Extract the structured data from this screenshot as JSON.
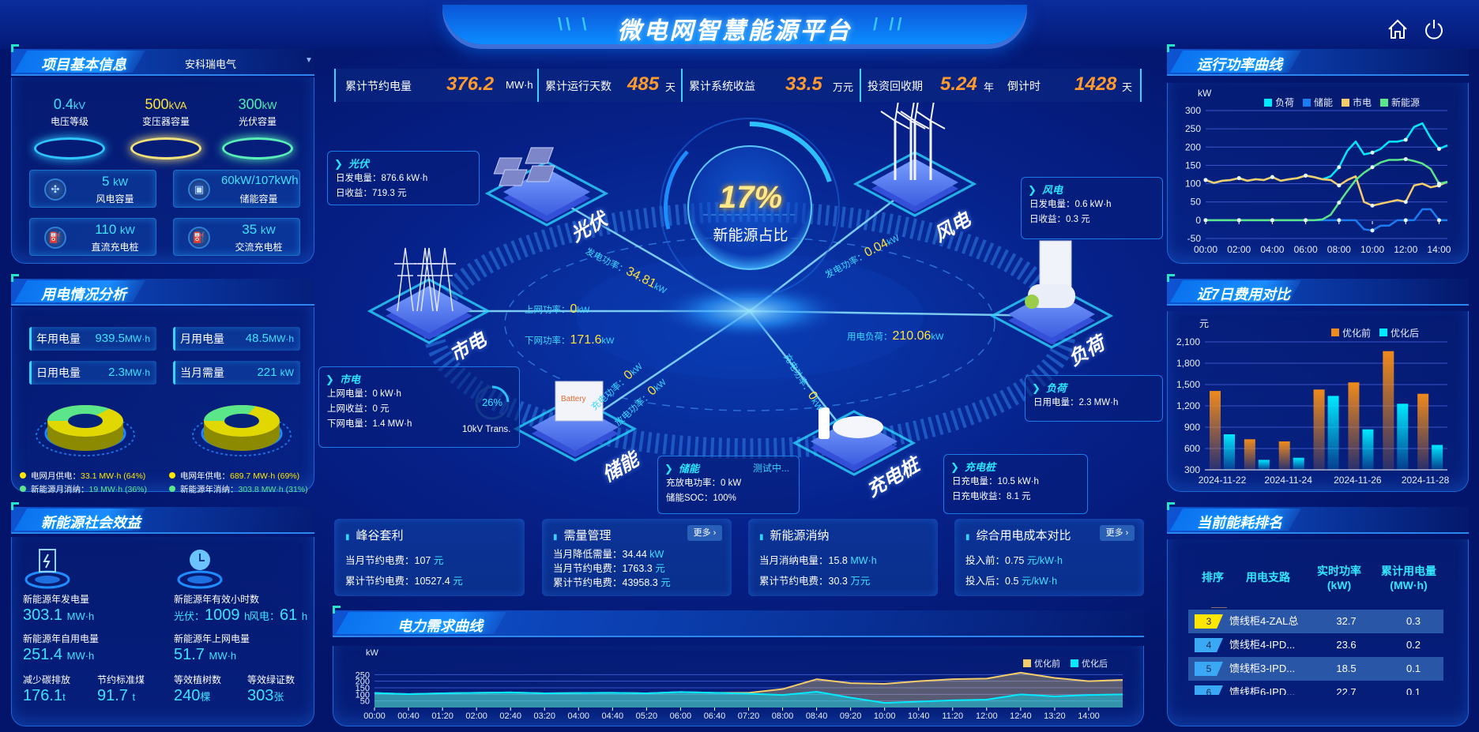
{
  "header": {
    "title": "微电网智慧能源平台",
    "icons": [
      "home-icon",
      "power-icon"
    ]
  },
  "project_info": {
    "title": "项目基本信息",
    "company_select": "安科瑞电气",
    "pedestals": [
      {
        "value": "0.4",
        "unit": "kV",
        "label": "电压等级",
        "color": "#3fe3ff"
      },
      {
        "value": "500",
        "unit": "kVA",
        "label": "变压器容量",
        "color": "#ffe23a"
      },
      {
        "value": "300",
        "unit": "kW",
        "label": "光伏容量",
        "color": "#4cf0b0"
      }
    ],
    "capacities": [
      {
        "value": "5",
        "unit": "kW",
        "label": "风电容量",
        "icon": "wind-turbine-icon"
      },
      {
        "value": "60kW/107kWh",
        "unit": "",
        "label": "储能容量",
        "icon": "battery-icon"
      },
      {
        "value": "110",
        "unit": "kW",
        "label": "直流充电桩",
        "icon": "charger-icon"
      },
      {
        "value": "35",
        "unit": "kW",
        "label": "交流充电桩",
        "icon": "charger-icon"
      }
    ]
  },
  "usage": {
    "title": "用电情况分析",
    "stats": [
      {
        "label": "年用电量",
        "value": "939.5",
        "unit": "MW·h"
      },
      {
        "label": "月用电量",
        "value": "48.5",
        "unit": "MW·h"
      },
      {
        "label": "日用电量",
        "value": "2.3",
        "unit": "MW·h"
      },
      {
        "label": "当月需量",
        "value": "221",
        "unit": "kW"
      }
    ],
    "donuts": [
      {
        "grid_pct": 64,
        "renew_pct": 36,
        "legend": [
          {
            "label": "电网月供电：",
            "value": "33.1 MW·h (64%)",
            "color": "#ffe600"
          },
          {
            "label": "新能源月消纳：",
            "value": "19 MW·h (36%)",
            "color": "#5ce68a"
          }
        ]
      },
      {
        "grid_pct": 69,
        "renew_pct": 31,
        "legend": [
          {
            "label": "电网年供电：",
            "value": "689.7 MW·h (69%)",
            "color": "#ffe600"
          },
          {
            "label": "新能源年消纳：",
            "value": "303.8 MW·h (31%)",
            "color": "#5ce68a"
          }
        ]
      }
    ]
  },
  "social": {
    "title": "新能源社会效益",
    "annual_gen": {
      "label": "新能源年发电量",
      "value": "303.1",
      "unit": "MW·h"
    },
    "hours": {
      "label": "新能源年有效小时数",
      "pv_label": "光伏：",
      "pv": "1009",
      "wind_label": "风电：",
      "wind": "61",
      "unit": "h"
    },
    "self_use": {
      "label": "新能源年自用电量",
      "value": "251.4",
      "unit": "MW·h"
    },
    "grid_feed": {
      "label": "新能源年上网电量",
      "value": "51.7",
      "unit": "MW·h"
    },
    "carbon": {
      "label": "减少碳排放",
      "value": "176.1",
      "unit": "t"
    },
    "coal": {
      "label": "节约标准煤",
      "value": "91.7",
      "unit": "t"
    },
    "trees": {
      "label": "等效植树数",
      "value": "240",
      "unit": "棵"
    },
    "certs": {
      "label": "等效绿证数",
      "value": "303",
      "unit": "张"
    }
  },
  "kpis": [
    {
      "label": "累计节约电量",
      "value": "376.2",
      "unit": "MW·h"
    },
    {
      "label": "累计运行天数",
      "value": "485",
      "unit": "天"
    },
    {
      "label": "累计系统收益",
      "value": "33.5",
      "unit": "万元"
    },
    {
      "label": "投资回收期",
      "value": "5.24",
      "unit": "年"
    },
    {
      "label": "倒计时",
      "value": "1428",
      "unit": "天"
    }
  ],
  "center": {
    "ratio": "17%",
    "ratio_label": "新能源占比",
    "nodes": {
      "pv": "光伏",
      "wind": "风电",
      "grid": "市电",
      "load": "负荷",
      "storage": "储能",
      "charger": "充电桩"
    },
    "flows": {
      "pv": {
        "label": "发电功率：",
        "value": "34.81",
        "unit": "kW"
      },
      "grid_up": {
        "label": "上网功率：",
        "value": "0",
        "unit": "kW"
      },
      "grid_down": {
        "label": "下网功率：",
        "value": "171.6",
        "unit": "kW"
      },
      "wind": {
        "label": "发电功率：",
        "value": "0.04",
        "unit": "kW"
      },
      "load": {
        "label": "用电负荷：",
        "value": "210.06",
        "unit": "kW"
      },
      "st_charge": {
        "label": "充电功率：",
        "value": "0",
        "unit": "kW"
      },
      "st_discharge": {
        "label": "放电功率：",
        "value": "0",
        "unit": "kW"
      },
      "ev_charge": {
        "label": "充电功率：",
        "value": "0",
        "unit": "kW"
      }
    },
    "transformer": {
      "load_pct": "26%",
      "label": "10kV Trans."
    },
    "info": {
      "pv": {
        "title": "光伏",
        "rows": [
          "日发电量：876.6 kW·h",
          "日收益：719.3 元"
        ]
      },
      "wind": {
        "title": "风电",
        "rows": [
          "日发电量：0.6 kW·h",
          "日收益：0.3 元"
        ]
      },
      "grid": {
        "title": "市电",
        "rows": [
          "上网电量：0 kW·h",
          "上网收益：0 元",
          "下网电量：1.4 MW·h"
        ]
      },
      "load": {
        "title": "负荷",
        "rows": [
          "日用电量：2.3 MW·h"
        ]
      },
      "storage": {
        "title": "储能",
        "status": "测试中...",
        "rows": [
          "充放电功率：0 kW",
          "储能SOC：100%"
        ]
      },
      "charger": {
        "title": "充电桩",
        "rows": [
          "日充电量：10.5 kW·h",
          "日充电收益：8.1 元"
        ]
      }
    }
  },
  "cards": [
    {
      "title": "峰谷套利",
      "rows": [
        {
          "label": "当月节约电费：",
          "value": "107",
          "unit": "元"
        },
        {
          "label": "累计节约电费：",
          "value": "10527.4",
          "unit": "元"
        }
      ]
    },
    {
      "title": "需量管理",
      "more": "更多 ›",
      "rows": [
        {
          "label": "当月降低需量：",
          "value": "34.44",
          "unit": "kW"
        },
        {
          "label": "当月节约电费：",
          "value": "1763.3",
          "unit": "元"
        },
        {
          "label": "累计节约电费：",
          "value": "43958.3",
          "unit": "元"
        }
      ]
    },
    {
      "title": "新能源消纳",
      "rows": [
        {
          "label": "当月消纳电量：",
          "value": "15.8",
          "unit": "MW·h"
        },
        {
          "label": "累计节约电费：",
          "value": "30.3",
          "unit": "万元"
        }
      ]
    },
    {
      "title": "综合用电成本对比",
      "more": "更多 ›",
      "rows": [
        {
          "label": "投入前：",
          "value": "0.75",
          "unit": "元/kW·h"
        },
        {
          "label": "投入后：",
          "value": "0.5",
          "unit": "元/kW·h"
        }
      ]
    }
  ],
  "panels": {
    "power": "运行功率曲线",
    "cost": "近7日费用对比",
    "demand": "电力需求曲线",
    "ranking": "当前能耗排名"
  },
  "ranking": {
    "headers": [
      "排序",
      "用电支路",
      "实时功率\n(kW)",
      "累计用电量\n(MW·h)"
    ],
    "rows": [
      {
        "rank": "3",
        "name": "馈线柜4-ZAL总",
        "power": "32.7",
        "energy": "0.3",
        "color": "#ffe600"
      },
      {
        "rank": "4",
        "name": "馈线柜4-IPD...",
        "power": "23.6",
        "energy": "0.2",
        "color": "#3aa8f5"
      },
      {
        "rank": "5",
        "name": "馈线柜3-IPD...",
        "power": "18.5",
        "energy": "0.1",
        "color": "#3aa8f5"
      },
      {
        "rank": "6",
        "name": "馈线柜6-IPD...",
        "power": "22.7",
        "energy": "0.1",
        "color": "#3aa8f5"
      }
    ]
  },
  "chart_data": [
    {
      "type": "line",
      "ylabel": "kW",
      "ylim": [
        -50,
        300
      ],
      "yticks": [
        300,
        250,
        200,
        150,
        100,
        50,
        0,
        -50
      ],
      "xticks": [
        "00:00",
        "02:00",
        "04:00",
        "06:00",
        "08:00",
        "10:00",
        "12:00",
        "14:00"
      ],
      "grid": true,
      "legend": "top",
      "x": [
        "00:00",
        "00:30",
        "01:00",
        "01:30",
        "02:00",
        "02:30",
        "03:00",
        "03:30",
        "04:00",
        "04:30",
        "05:00",
        "05:30",
        "06:00",
        "06:30",
        "07:00",
        "07:30",
        "08:00",
        "08:30",
        "09:00",
        "09:30",
        "10:00",
        "10:30",
        "11:00",
        "11:30",
        "12:00",
        "12:30",
        "13:00",
        "13:30",
        "14:00",
        "14:30"
      ],
      "series": [
        {
          "name": "负荷",
          "color": "#00eaff",
          "values": [
            110,
            102,
            108,
            110,
            115,
            108,
            112,
            110,
            118,
            108,
            112,
            115,
            122,
            118,
            112,
            120,
            145,
            190,
            215,
            180,
            185,
            195,
            215,
            215,
            220,
            255,
            265,
            225,
            195,
            205
          ]
        },
        {
          "name": "储能",
          "color": "#1a7cf0",
          "values": [
            0,
            0,
            0,
            0,
            0,
            0,
            0,
            0,
            0,
            0,
            0,
            0,
            0,
            0,
            0,
            0,
            0,
            0,
            0,
            -25,
            -28,
            -15,
            -15,
            0,
            0,
            0,
            30,
            30,
            0,
            0
          ]
        },
        {
          "name": "市电",
          "color": "#f4cd6a",
          "values": [
            110,
            102,
            108,
            110,
            115,
            108,
            112,
            110,
            118,
            108,
            112,
            115,
            122,
            118,
            112,
            110,
            95,
            110,
            120,
            50,
            40,
            45,
            50,
            55,
            50,
            95,
            100,
            90,
            95,
            105
          ]
        },
        {
          "name": "新能源",
          "color": "#5ce68a",
          "values": [
            0,
            0,
            0,
            0,
            0,
            0,
            0,
            0,
            0,
            0,
            0,
            0,
            0,
            0,
            2,
            15,
            48,
            80,
            110,
            130,
            145,
            158,
            165,
            165,
            167,
            162,
            155,
            140,
            100,
            105
          ]
        }
      ]
    },
    {
      "type": "bar",
      "ylabel": "元",
      "ylim": [
        300,
        2100
      ],
      "yticks": [
        2100,
        1800,
        1500,
        1200,
        900,
        600,
        300
      ],
      "grid": true,
      "legend": "top-right",
      "categories": [
        "2024-11-22",
        "2024-11-23",
        "2024-11-24",
        "2024-11-25",
        "2024-11-26",
        "2024-11-27",
        "2024-11-28"
      ],
      "xticks": [
        "2024-11-22",
        "2024-11-24",
        "2024-11-26",
        "2024-11-28"
      ],
      "series": [
        {
          "name": "优化前",
          "color": "#f08a1c",
          "values": [
            1410,
            730,
            700,
            1430,
            1530,
            1970,
            1370
          ]
        },
        {
          "name": "优化后",
          "color": "#00eaff",
          "values": [
            800,
            440,
            470,
            1340,
            870,
            1230,
            650
          ]
        }
      ]
    },
    {
      "type": "area",
      "ylabel": "kW",
      "ylim": [
        0,
        300
      ],
      "yticks": [
        250,
        200,
        150,
        100,
        50
      ],
      "grid": true,
      "legend": "top-right",
      "xticks": [
        "00:00",
        "00:40",
        "01:20",
        "02:00",
        "02:40",
        "03:20",
        "04:00",
        "04:40",
        "05:20",
        "06:00",
        "06:40",
        "07:20",
        "08:00",
        "08:40",
        "09:20",
        "10:00",
        "10:40",
        "11:20",
        "12:00",
        "12:40",
        "13:20",
        "14:00"
      ],
      "x": [
        "00:00",
        "00:40",
        "01:20",
        "02:00",
        "02:40",
        "03:20",
        "04:00",
        "04:40",
        "05:20",
        "06:00",
        "06:40",
        "07:20",
        "08:00",
        "08:40",
        "09:20",
        "10:00",
        "10:40",
        "11:20",
        "12:00",
        "12:40",
        "13:20",
        "14:00",
        "14:40"
      ],
      "series": [
        {
          "name": "优化前",
          "color": "#f4cd6a",
          "values": [
            110,
            102,
            108,
            112,
            115,
            108,
            110,
            112,
            108,
            118,
            112,
            112,
            140,
            215,
            185,
            180,
            200,
            215,
            220,
            265,
            225,
            200,
            210
          ]
        },
        {
          "name": "优化后",
          "color": "#00eaff",
          "values": [
            110,
            102,
            108,
            112,
            115,
            108,
            110,
            112,
            108,
            118,
            112,
            105,
            95,
            120,
            75,
            35,
            45,
            55,
            60,
            100,
            85,
            95,
            100
          ]
        }
      ]
    }
  ]
}
